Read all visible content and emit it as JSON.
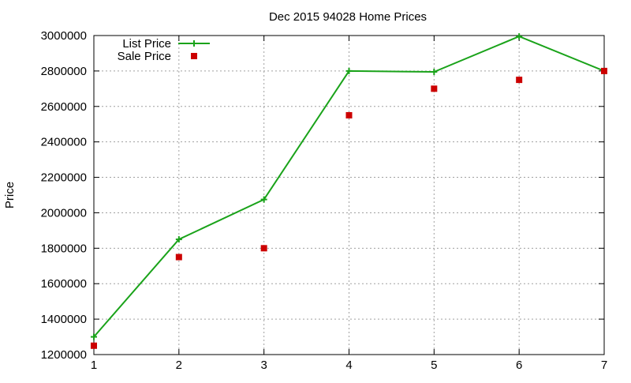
{
  "chart_data": {
    "type": "line",
    "title": "Dec 2015 94028 Home Prices",
    "xlabel": "",
    "ylabel": "Price",
    "xlim": [
      1,
      7
    ],
    "ylim": [
      1200000,
      3000000
    ],
    "x_ticks": [
      1,
      2,
      3,
      4,
      5,
      6,
      7
    ],
    "y_ticks": [
      1200000,
      1400000,
      1600000,
      1800000,
      2000000,
      2200000,
      2400000,
      2600000,
      2800000,
      3000000
    ],
    "grid": true,
    "legend_position": "top-left",
    "x": [
      1,
      2,
      3,
      4,
      5,
      6,
      7
    ],
    "series": [
      {
        "name": "List Price",
        "style": "line-with-plus-markers",
        "color": "#1aa31a",
        "values": [
          1300000,
          1850000,
          2075000,
          2800000,
          2795000,
          2995000,
          2800000
        ]
      },
      {
        "name": "Sale Price",
        "style": "square-markers",
        "color": "#cc0000",
        "values": [
          1250000,
          1750000,
          1800000,
          2550000,
          2700000,
          2750000,
          2800000
        ]
      }
    ]
  }
}
